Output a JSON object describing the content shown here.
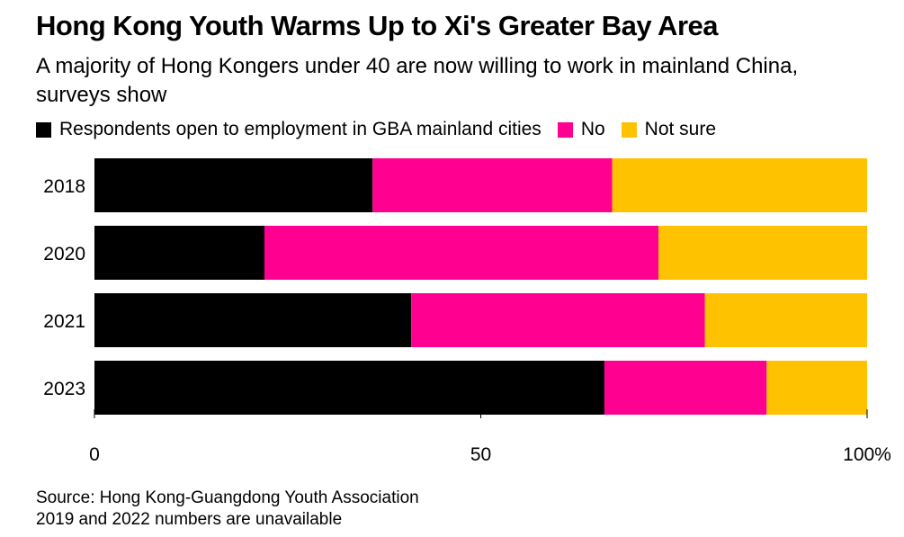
{
  "title": "Hong Kong Youth Warms Up to Xi's Greater Bay Area",
  "subtitle": "A majority of Hong Kongers under 40 are now willing to work in mainland China, surveys show",
  "chart_data": {
    "type": "bar",
    "orientation": "horizontal",
    "stacked": true,
    "categories": [
      "2018",
      "2020",
      "2021",
      "2023"
    ],
    "series": [
      {
        "name": "Respondents open to employment in GBA mainland cities",
        "color": "#000000",
        "values": [
          36,
          22,
          41,
          66
        ]
      },
      {
        "name": "No",
        "color": "#ff0090",
        "values": [
          31,
          51,
          38,
          21
        ]
      },
      {
        "name": "Not sure",
        "color": "#ffc200",
        "values": [
          33,
          27,
          21,
          13
        ]
      }
    ],
    "xlim": [
      0,
      100
    ],
    "xticks": [
      {
        "value": 0,
        "label": "0"
      },
      {
        "value": 50,
        "label": "50"
      },
      {
        "value": 100,
        "label": "100%"
      }
    ],
    "legend_position": "top-left",
    "grid": false
  },
  "source": {
    "line1": "Source: Hong Kong-Guangdong Youth Association",
    "line2": "2019 and 2022 numbers are unavailable"
  }
}
